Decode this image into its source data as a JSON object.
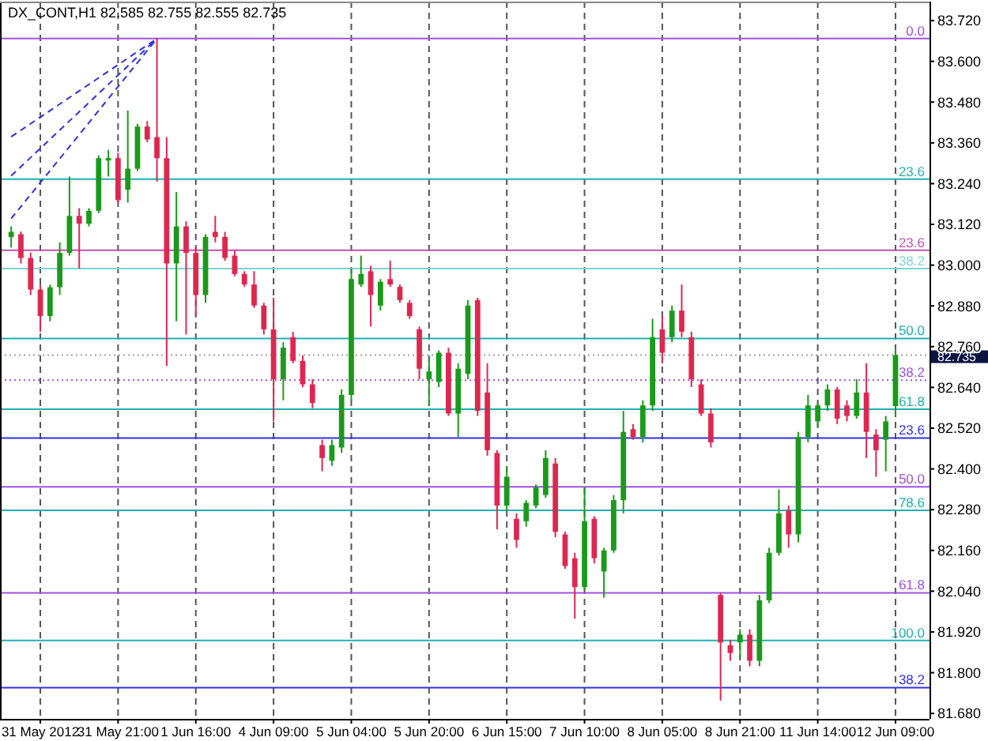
{
  "chart_data": {
    "type": "candlestick",
    "title": "DX_CONT,H1 82.585 82.755 82.555 82.735",
    "categories": [
      null,
      null,
      null,
      "31 May 2012",
      null,
      null,
      null,
      null,
      null,
      null,
      null,
      "31 May 21:00",
      null,
      null,
      null,
      null,
      null,
      null,
      null,
      "1 Jun 16:00",
      null,
      null,
      null,
      null,
      null,
      null,
      null,
      "4 Jun 09:00",
      null,
      null,
      null,
      null,
      null,
      null,
      null,
      "5 Jun 04:00",
      null,
      null,
      null,
      null,
      null,
      null,
      null,
      "5 Jun 20:00",
      null,
      null,
      null,
      null,
      null,
      null,
      null,
      "6 Jun 15:00",
      null,
      null,
      null,
      null,
      null,
      null,
      null,
      "7 Jun 10:00",
      null,
      null,
      null,
      null,
      null,
      null,
      null,
      "8 Jun 05:00",
      null,
      null,
      null,
      null,
      null,
      null,
      null,
      "8 Jun 21:00",
      null,
      null,
      null,
      null,
      null,
      null,
      null,
      "11 Jun 14:00",
      null,
      null,
      null,
      null,
      null,
      null,
      null,
      "12 Jun 09:00"
    ],
    "grid": "x",
    "ylim": [
      81.664,
      83.776
    ],
    "yticks": [
      {
        "value": 83.72,
        "label": "83.720"
      },
      {
        "value": 83.6,
        "label": "83.600"
      },
      {
        "value": 83.48,
        "label": "83.480"
      },
      {
        "value": 83.36,
        "label": "83.360"
      },
      {
        "value": 83.24,
        "label": "83.240"
      },
      {
        "value": 83.12,
        "label": "83.120"
      },
      {
        "value": 83.0,
        "label": "83.000"
      },
      {
        "value": 82.88,
        "label": "82.880"
      },
      {
        "value": 82.76,
        "label": "82.760"
      },
      {
        "value": 82.64,
        "label": "82.640"
      },
      {
        "value": 82.52,
        "label": "82.520"
      },
      {
        "value": 82.4,
        "label": "82.400"
      },
      {
        "value": 82.28,
        "label": "82.280"
      },
      {
        "value": 82.16,
        "label": "82.160"
      },
      {
        "value": 82.04,
        "label": "82.040"
      },
      {
        "value": 81.92,
        "label": "81.920"
      },
      {
        "value": 81.8,
        "label": "81.800"
      },
      {
        "value": 81.68,
        "label": "81.680"
      }
    ],
    "ohlc": [
      [
        83.083,
        83.114,
        83.052,
        83.098
      ],
      [
        83.091,
        83.099,
        83.005,
        83.021
      ],
      [
        83.021,
        83.037,
        82.912,
        82.928
      ],
      [
        82.928,
        82.943,
        82.804,
        82.85
      ],
      [
        82.85,
        82.943,
        82.835,
        82.935
      ],
      [
        82.935,
        83.067,
        82.912,
        83.036
      ],
      [
        83.036,
        83.261,
        83.028,
        83.145
      ],
      [
        83.145,
        83.168,
        82.99,
        83.122
      ],
      [
        83.122,
        83.168,
        83.114,
        83.16
      ],
      [
        83.16,
        83.323,
        83.153,
        83.315
      ],
      [
        83.308,
        83.339,
        83.261,
        83.315
      ],
      [
        83.315,
        83.331,
        83.184,
        83.191
      ],
      [
        83.222,
        83.455,
        83.184,
        83.284
      ],
      [
        83.284,
        83.416,
        83.277,
        83.408
      ],
      [
        83.408,
        83.424,
        83.362,
        83.37
      ],
      [
        83.377,
        83.667,
        83.246,
        83.315
      ],
      [
        83.315,
        83.377,
        82.703,
        83.005
      ],
      [
        83.005,
        83.215,
        82.835,
        83.114
      ],
      [
        83.114,
        83.129,
        82.796,
        83.036
      ],
      [
        83.036,
        83.052,
        82.85,
        82.912
      ],
      [
        82.912,
        83.091,
        82.889,
        83.083
      ],
      [
        83.098,
        83.145,
        83.067,
        83.083
      ],
      [
        83.083,
        83.098,
        83.013,
        83.021
      ],
      [
        83.028,
        83.044,
        82.967,
        82.974
      ],
      [
        82.974,
        82.982,
        82.936,
        82.943
      ],
      [
        82.943,
        82.982,
        82.874,
        82.881
      ],
      [
        82.881,
        82.889,
        82.796,
        82.811
      ],
      [
        82.811,
        82.904,
        82.54,
        82.664
      ],
      [
        82.664,
        82.773,
        82.602,
        82.757
      ],
      [
        82.788,
        82.804,
        82.711,
        82.718
      ],
      [
        82.718,
        82.734,
        82.641,
        82.649
      ],
      [
        82.649,
        82.664,
        82.579,
        82.594
      ],
      [
        82.47,
        82.486,
        82.393,
        82.432
      ],
      [
        82.424,
        82.486,
        82.409,
        82.47
      ],
      [
        82.463,
        82.634,
        82.447,
        82.618
      ],
      [
        82.618,
        82.99,
        82.602,
        82.959
      ],
      [
        82.943,
        83.028,
        82.936,
        82.974
      ],
      [
        82.982,
        82.998,
        82.819,
        82.912
      ],
      [
        82.881,
        82.959,
        82.866,
        82.951
      ],
      [
        82.959,
        83.013,
        82.936,
        82.943
      ],
      [
        82.936,
        82.943,
        82.889,
        82.897
      ],
      [
        82.889,
        82.897,
        82.842,
        82.85
      ],
      [
        82.811,
        82.819,
        82.664,
        82.695
      ],
      [
        82.664,
        82.726,
        82.587,
        82.687
      ],
      [
        82.656,
        82.749,
        82.641,
        82.742
      ],
      [
        82.742,
        82.757,
        82.556,
        82.563
      ],
      [
        82.563,
        82.711,
        82.494,
        82.695
      ],
      [
        82.68,
        82.897,
        82.664,
        82.881
      ],
      [
        82.897,
        82.904,
        82.556,
        82.571
      ],
      [
        82.625,
        82.711,
        82.439,
        82.455
      ],
      [
        82.447,
        82.455,
        82.222,
        82.292
      ],
      [
        82.292,
        82.408,
        82.277,
        82.377
      ],
      [
        82.253,
        82.269,
        82.168,
        82.191
      ],
      [
        82.246,
        82.308,
        82.23,
        82.3
      ],
      [
        82.292,
        82.354,
        82.284,
        82.346
      ],
      [
        82.323,
        82.455,
        82.315,
        82.432
      ],
      [
        82.416,
        82.432,
        82.199,
        82.215
      ],
      [
        82.207,
        82.215,
        82.106,
        82.114
      ],
      [
        82.137,
        82.153,
        81.959,
        82.052
      ],
      [
        82.052,
        82.347,
        82.044,
        82.246
      ],
      [
        82.253,
        82.261,
        82.122,
        82.137
      ],
      [
        82.098,
        82.168,
        82.021,
        82.16
      ],
      [
        82.16,
        82.323,
        82.153,
        82.308
      ],
      [
        82.308,
        82.571,
        82.269,
        82.509
      ],
      [
        82.517,
        82.532,
        82.486,
        82.494
      ],
      [
        82.494,
        82.602,
        82.478,
        82.587
      ],
      [
        82.587,
        82.842,
        82.571,
        82.788
      ],
      [
        82.811,
        82.85,
        82.711,
        82.742
      ],
      [
        82.788,
        82.881,
        82.773,
        82.866
      ],
      [
        82.866,
        82.943,
        82.788,
        82.804
      ],
      [
        82.788,
        82.804,
        82.641,
        82.664
      ],
      [
        82.649,
        82.664,
        82.556,
        82.563
      ],
      [
        82.563,
        82.579,
        82.463,
        82.478
      ],
      [
        82.029,
        82.036,
        81.718,
        81.889
      ],
      [
        81.881,
        81.897,
        81.835,
        81.858
      ],
      [
        81.889,
        81.928,
        81.842,
        81.912
      ],
      [
        81.912,
        81.928,
        81.819,
        81.835
      ],
      [
        81.835,
        82.029,
        81.819,
        82.013
      ],
      [
        82.013,
        82.168,
        82.005,
        82.153
      ],
      [
        82.153,
        82.339,
        82.145,
        82.269
      ],
      [
        82.277,
        82.292,
        82.168,
        82.207
      ],
      [
        82.207,
        82.509,
        82.184,
        82.494
      ],
      [
        82.494,
        82.618,
        82.478,
        82.587
      ],
      [
        82.54,
        82.594,
        82.525,
        82.587
      ],
      [
        82.587,
        82.649,
        82.571,
        82.634
      ],
      [
        82.634,
        82.641,
        82.532,
        82.548
      ],
      [
        82.587,
        82.602,
        82.54,
        82.556
      ],
      [
        82.556,
        82.664,
        82.548,
        82.625
      ],
      [
        82.625,
        82.711,
        82.432,
        82.509
      ],
      [
        82.501,
        82.517,
        82.377,
        82.455
      ],
      [
        82.486,
        82.556,
        82.393,
        82.54
      ],
      [
        82.585,
        82.755,
        82.555,
        82.735
      ]
    ],
    "colors": [
      "#1a9a1a",
      "#dc2850",
      "#dc2850",
      "#dc2850",
      "#1a9a1a",
      "#1a9a1a",
      "#1a9a1a",
      "#dc2850",
      "#1a9a1a",
      "#1a9a1a",
      "#1a9a1a",
      "#dc2850",
      "#1a9a1a",
      "#1a9a1a",
      "#dc2850",
      "#dc2850",
      "#dc2850",
      "#1a9a1a",
      "#dc2850",
      "#dc2850",
      "#1a9a1a",
      "#dc2850",
      "#dc2850",
      "#dc2850",
      "#dc2850",
      "#dc2850",
      "#dc2850",
      "#dc2850",
      "#1a9a1a",
      "#dc2850",
      "#dc2850",
      "#dc2850",
      "#dc2850",
      "#1a9a1a",
      "#1a9a1a",
      "#1a9a1a",
      "#1a9a1a",
      "#dc2850",
      "#1a9a1a",
      "#dc2850",
      "#dc2850",
      "#dc2850",
      "#dc2850",
      "#1a9a1a",
      "#1a9a1a",
      "#dc2850",
      "#1a9a1a",
      "#1a9a1a",
      "#dc2850",
      "#dc2850",
      "#dc2850",
      "#1a9a1a",
      "#dc2850",
      "#1a9a1a",
      "#1a9a1a",
      "#1a9a1a",
      "#dc2850",
      "#dc2850",
      "#dc2850",
      "#1a9a1a",
      "#dc2850",
      "#1a9a1a",
      "#1a9a1a",
      "#1a9a1a",
      "#dc2850",
      "#1a9a1a",
      "#1a9a1a",
      "#dc2850",
      "#1a9a1a",
      "#dc2850",
      "#dc2850",
      "#dc2850",
      "#dc2850",
      "#dc2850",
      "#dc2850",
      "#1a9a1a",
      "#dc2850",
      "#1a9a1a",
      "#1a9a1a",
      "#1a9a1a",
      "#dc2850",
      "#1a9a1a",
      "#1a9a1a",
      "#1a9a1a",
      "#1a9a1a",
      "#dc2850",
      "#dc2850",
      "#1a9a1a",
      "#dc2850",
      "#dc2850",
      "#1a9a1a",
      "#1a9a1a"
    ],
    "series": [
      {
        "type": "line",
        "values": [
          83.378,
          null,
          null,
          null,
          null,
          null,
          null,
          null,
          null,
          null,
          null,
          null,
          null,
          null,
          null,
          83.667,
          null,
          null,
          null,
          null,
          null,
          null,
          null,
          null,
          null,
          null,
          null,
          null,
          null,
          null,
          null,
          null,
          null,
          null,
          null,
          null,
          null,
          null,
          null,
          null,
          null,
          null,
          null,
          null,
          null,
          null,
          null,
          null,
          null,
          null,
          null,
          null,
          null,
          null,
          null,
          null,
          null,
          null,
          null,
          null,
          null,
          null,
          null,
          null,
          null,
          null,
          null,
          null,
          null,
          null,
          null,
          null,
          null,
          null,
          null,
          null,
          null,
          null,
          null,
          null,
          null,
          null,
          null,
          null,
          null,
          null,
          null,
          null,
          null,
          null,
          null,
          null
        ],
        "color": "#3030e0",
        "line_style": "dashed"
      },
      {
        "type": "line",
        "values": [
          83.263,
          null,
          null,
          null,
          null,
          null,
          null,
          null,
          null,
          null,
          null,
          null,
          null,
          null,
          null,
          83.667,
          null,
          null,
          null,
          null,
          null,
          null,
          null,
          null,
          null,
          null,
          null,
          null,
          null,
          null,
          null,
          null,
          null,
          null,
          null,
          null,
          null,
          null,
          null,
          null,
          null,
          null,
          null,
          null,
          null,
          null,
          null,
          null,
          null,
          null,
          null,
          null,
          null,
          null,
          null,
          null,
          null,
          null,
          null,
          null,
          null,
          null,
          null,
          null,
          null,
          null,
          null,
          null,
          null,
          null,
          null,
          null,
          null,
          null,
          null,
          null,
          null,
          null,
          null,
          null,
          null,
          null,
          null,
          null,
          null,
          null,
          null,
          null,
          null,
          null,
          null,
          null
        ],
        "color": "#3030e0",
        "line_style": "dashed"
      },
      {
        "type": "line",
        "values": [
          83.137,
          null,
          null,
          null,
          null,
          null,
          null,
          null,
          null,
          null,
          null,
          null,
          null,
          null,
          null,
          83.667,
          null,
          null,
          null,
          null,
          null,
          null,
          null,
          null,
          null,
          null,
          null,
          null,
          null,
          null,
          null,
          null,
          null,
          null,
          null,
          null,
          null,
          null,
          null,
          null,
          null,
          null,
          null,
          null,
          null,
          null,
          null,
          null,
          null,
          null,
          null,
          null,
          null,
          null,
          null,
          null,
          null,
          null,
          null,
          null,
          null,
          null,
          null,
          null,
          null,
          null,
          null,
          null,
          null,
          null,
          null,
          null,
          null,
          null,
          null,
          null,
          null,
          null,
          null,
          null,
          null,
          null,
          null,
          null,
          null,
          null,
          null,
          null,
          null,
          null,
          null,
          null
        ],
        "color": "#3030e0",
        "line_style": "dashed"
      }
    ],
    "ref_lines": [
      {
        "axis": "y",
        "value": 83.667,
        "color": "#a050e0"
      },
      {
        "axis": "y",
        "value": 83.253,
        "color": "#20b0b0"
      },
      {
        "axis": "y",
        "value": 83.044,
        "color": "#c050b0"
      },
      {
        "axis": "y",
        "value": 82.99,
        "color": "#80d4d4"
      },
      {
        "axis": "y",
        "value": 82.784,
        "color": "#20b0b0"
      },
      {
        "axis": "y",
        "value": 82.735,
        "label": "82.735",
        "color": "#a0a0a0",
        "line_style": "dotted"
      },
      {
        "axis": "y",
        "value": 82.661,
        "color": "#a050e0",
        "line_style": "dotted"
      },
      {
        "axis": "y",
        "value": 82.576,
        "color": "#20b0b0"
      },
      {
        "axis": "y",
        "value": 82.491,
        "color": "#3030e0"
      },
      {
        "axis": "y",
        "value": 82.347,
        "color": "#a050e0"
      },
      {
        "axis": "y",
        "value": 82.278,
        "color": "#20b0b0"
      },
      {
        "axis": "y",
        "value": 82.035,
        "color": "#a050e0"
      },
      {
        "axis": "y",
        "value": 81.895,
        "color": "#20b0b0"
      },
      {
        "axis": "y",
        "value": 81.756,
        "color": "#3030e0"
      }
    ],
    "annotations": [
      {
        "text": "0.0",
        "y": 83.667
      },
      {
        "text": "23.6",
        "y": 83.253
      },
      {
        "text": "23.6",
        "y": 83.044
      },
      {
        "text": "38.2",
        "y": 82.99
      },
      {
        "text": "50.0",
        "y": 82.784
      },
      {
        "text": "38.2",
        "y": 82.661
      },
      {
        "text": "61.8",
        "y": 82.576
      },
      {
        "text": "23.6",
        "y": 82.491
      },
      {
        "text": "50.0",
        "y": 82.347
      },
      {
        "text": "78.6",
        "y": 82.278
      },
      {
        "text": "61.8",
        "y": 82.035
      },
      {
        "text": "100.0",
        "y": 81.895
      },
      {
        "text": "38.2",
        "y": 81.756
      }
    ]
  }
}
